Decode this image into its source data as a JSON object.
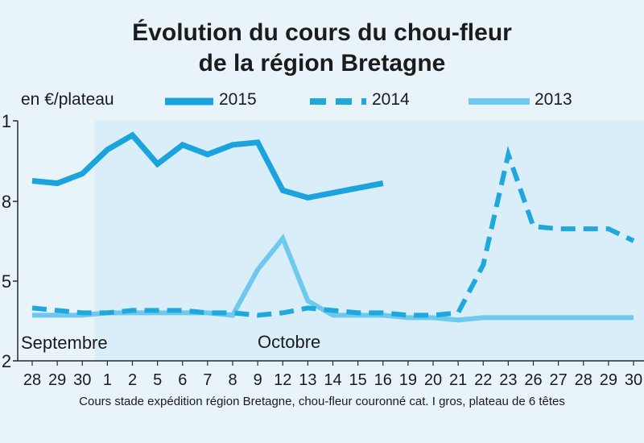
{
  "title_line1": "Évolution du cours du chou-fleur",
  "title_line2": "de la région Bretagne",
  "unit_label": "en €/plateau",
  "source_note": "Cours stade expédition région Bretagne, chou-fleur couronné cat. I gros, plateau de 6 têtes",
  "month_labels": [
    "Septembre",
    "Octobre"
  ],
  "colors": {
    "s2015": "#1aa3dc",
    "s2014": "#1fa8de",
    "s2013": "#6fc8ee",
    "plot_bg": "#d9eef8",
    "frame_bg": "#e8f3fa"
  },
  "chart_data": {
    "type": "line",
    "categories": [
      "28",
      "29",
      "30",
      "1",
      "2",
      "5",
      "6",
      "7",
      "8",
      "9",
      "12",
      "13",
      "14",
      "15",
      "16",
      "19",
      "20",
      "21",
      "22",
      "23",
      "26",
      "27",
      "28",
      "29",
      "30"
    ],
    "y_tick_labels": [
      "1",
      "8",
      "5",
      "2"
    ],
    "ylim": [
      0.0,
      1.0
    ],
    "legend_placement": "top",
    "grid": false,
    "series": [
      {
        "name": "2015",
        "style": "solid-thick",
        "values": [
          0.75,
          0.74,
          0.78,
          0.88,
          0.94,
          0.82,
          0.9,
          0.86,
          0.9,
          0.91,
          0.71,
          0.68,
          0.7,
          0.72,
          0.74,
          null,
          null,
          null,
          null,
          null,
          null,
          null,
          null,
          null,
          null
        ]
      },
      {
        "name": "2014",
        "style": "dashed",
        "values": [
          0.22,
          0.21,
          0.2,
          0.2,
          0.21,
          0.21,
          0.21,
          0.2,
          0.2,
          0.19,
          0.2,
          0.22,
          0.21,
          0.2,
          0.2,
          0.19,
          0.19,
          0.2,
          0.4,
          0.86,
          0.56,
          0.55,
          0.55,
          0.55,
          0.5
        ]
      },
      {
        "name": "2013",
        "style": "solid-light",
        "values": [
          0.19,
          0.19,
          0.19,
          0.2,
          0.2,
          0.2,
          0.2,
          0.2,
          0.19,
          0.38,
          0.51,
          0.25,
          0.19,
          0.19,
          0.19,
          0.18,
          0.18,
          0.17,
          0.18,
          0.18,
          0.18,
          0.18,
          0.18,
          0.18,
          0.18
        ]
      }
    ]
  }
}
